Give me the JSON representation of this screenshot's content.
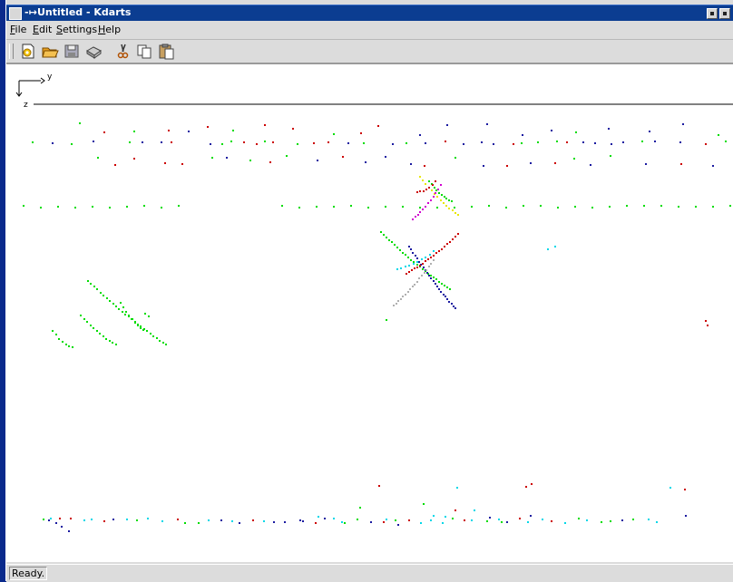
{
  "window": {
    "title": "Untitled - Kdarts",
    "pin_glyph": "-↦"
  },
  "menu": {
    "file": "File",
    "edit": "Edit",
    "settings": "Settings",
    "help": "Help"
  },
  "toolbar": {
    "icons": [
      "new-file-icon",
      "open-folder-icon",
      "save-icon",
      "print-icon",
      "cut-icon",
      "copy-icon",
      "paste-icon"
    ]
  },
  "view": {
    "axis_h_label": "y",
    "axis_v_label": "z"
  },
  "status": {
    "text": "Ready."
  },
  "colors": {
    "window_bg": "#0a2a8c",
    "titlebar": "#0b3d91",
    "hit_green": "#00dd00",
    "hit_blue": "#1a1aa0",
    "hit_red": "#cc0000",
    "hit_cyan": "#00d8e8",
    "hit_magenta": "#d000d0",
    "hit_yellow": "#e8e800",
    "hit_gray": "#b0b0b0"
  }
}
